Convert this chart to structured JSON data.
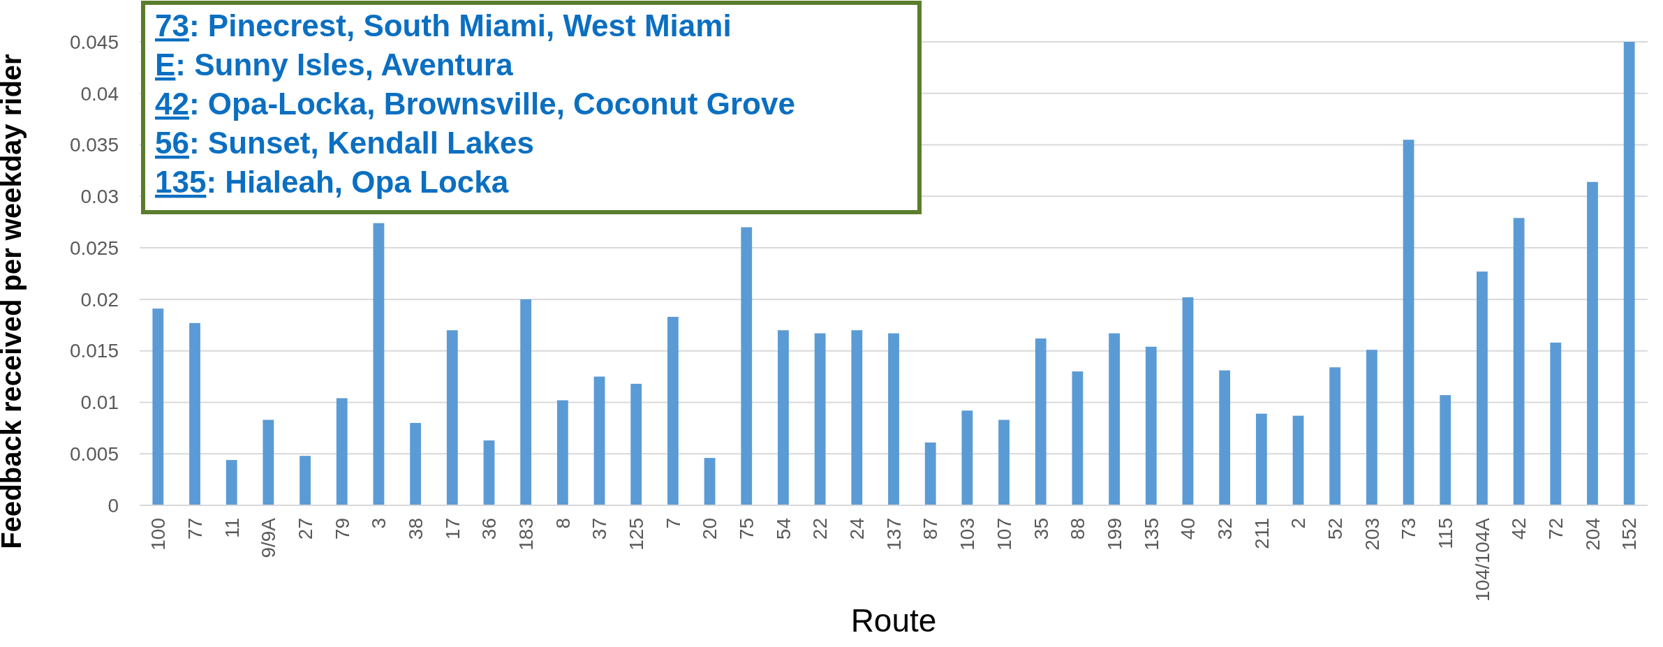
{
  "chart_data": {
    "type": "bar",
    "xlabel": "Route",
    "ylabel": "Feedback received per weekday rider",
    "categories": [
      "100",
      "77",
      "11",
      "9/9A",
      "27",
      "79",
      "3",
      "38",
      "17",
      "36",
      "183",
      "8",
      "37",
      "125",
      "7",
      "20",
      "75",
      "54",
      "22",
      "24",
      "137",
      "87",
      "103",
      "107",
      "35",
      "88",
      "199",
      "135",
      "40",
      "32",
      "211",
      "2",
      "52",
      "203",
      "73",
      "115",
      "104/104A",
      "42",
      "72",
      "204",
      "152"
    ],
    "values": [
      0.0191,
      0.0177,
      0.0044,
      0.0083,
      0.0048,
      0.0104,
      0.0274,
      0.008,
      0.017,
      0.0063,
      0.02,
      0.0102,
      0.0125,
      0.0118,
      0.0183,
      0.0046,
      0.027,
      0.017,
      0.0167,
      0.017,
      0.0167,
      0.0061,
      0.0092,
      0.0083,
      0.0162,
      0.013,
      0.0167,
      0.0154,
      0.0202,
      0.0131,
      0.0089,
      0.0087,
      0.0134,
      0.0151,
      0.0355,
      0.0107,
      0.0227,
      0.0279,
      0.0158,
      0.0314,
      0.045
    ],
    "color": "#5b9bd5",
    "ylim": [
      0,
      0.045
    ],
    "yticks": [
      0,
      {
        "value": 0.005,
        "label": "0.005"
      },
      {
        "value": 0.01,
        "label": "0.01"
      },
      {
        "value": 0.015,
        "label": "0.015"
      },
      {
        "value": 0.02,
        "label": "0.02"
      },
      {
        "value": 0.025,
        "label": "0.025"
      },
      {
        "value": 0.03,
        "label": "0.03"
      },
      {
        "value": 0.035,
        "label": "0.035"
      },
      {
        "value": 0.04,
        "label": "0.04"
      },
      {
        "value": 0.045,
        "label": "0.045"
      }
    ],
    "grid": "y",
    "annotations": [
      "73: Pinecrest, South Miami, West Miami",
      "E: Sunny Isles, Aventura",
      "42: Opa-Locka, Brownsville, Coconut Grove",
      "56: Sunset, Kendall Lakes",
      "135: Hialeah, Opa Locka"
    ]
  }
}
